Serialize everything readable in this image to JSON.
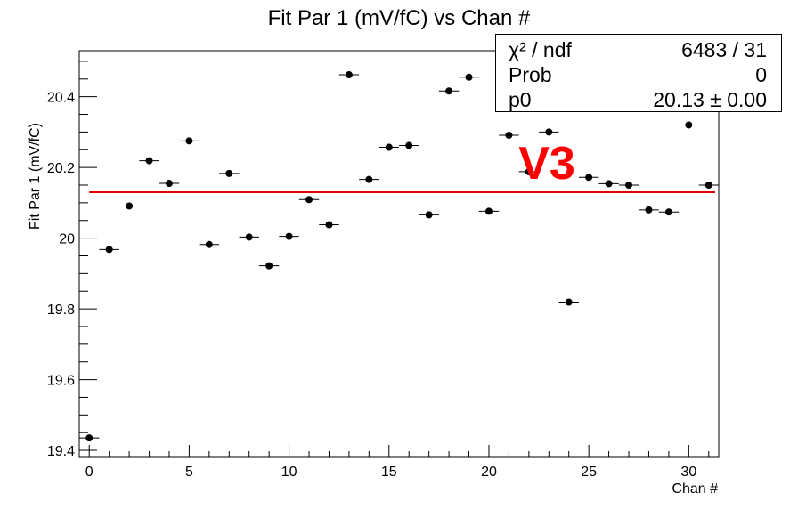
{
  "chart_data": {
    "type": "scatter",
    "title": "Fit Par 1 (mV/fC) vs Chan #",
    "xlabel": "Chan #",
    "ylabel": "Fit Par 1 (mV/fC)",
    "xlim": [
      -0.5,
      31.5
    ],
    "ylim": [
      19.38,
      20.53
    ],
    "x_ticks": [
      0,
      5,
      10,
      15,
      20,
      25,
      30
    ],
    "y_ticks": [
      19.4,
      19.6,
      19.8,
      20,
      20.2,
      20.4
    ],
    "grid": false,
    "series": [
      {
        "x": [
          0,
          1,
          2,
          3,
          4,
          5,
          6,
          7,
          8,
          9,
          10,
          11,
          12,
          13,
          14,
          15,
          16,
          17,
          18,
          19,
          20,
          21,
          22,
          23,
          24,
          25,
          26,
          27,
          28,
          29,
          30,
          31
        ],
        "values": [
          19.435,
          19.968,
          20.091,
          20.219,
          20.155,
          20.275,
          19.982,
          20.183,
          20.003,
          19.922,
          20.005,
          20.109,
          20.038,
          20.462,
          20.166,
          20.257,
          20.262,
          20.066,
          20.416,
          20.455,
          20.076,
          20.291,
          20.188,
          20.3,
          19.819,
          20.172,
          20.154,
          20.15,
          20.08,
          20.074,
          20.32,
          20.15
        ],
        "color": "#000000"
      }
    ],
    "fit_line": {
      "value": 20.13,
      "color": "#dd0000"
    },
    "annotation": {
      "text": "V3",
      "color": "#ff0000"
    }
  },
  "stats": {
    "rows": [
      {
        "label": "χ² / ndf",
        "value": "6483 / 31"
      },
      {
        "label": "Prob",
        "value": "0"
      },
      {
        "label": "p0",
        "value": "20.13 ± 0.00"
      }
    ]
  }
}
